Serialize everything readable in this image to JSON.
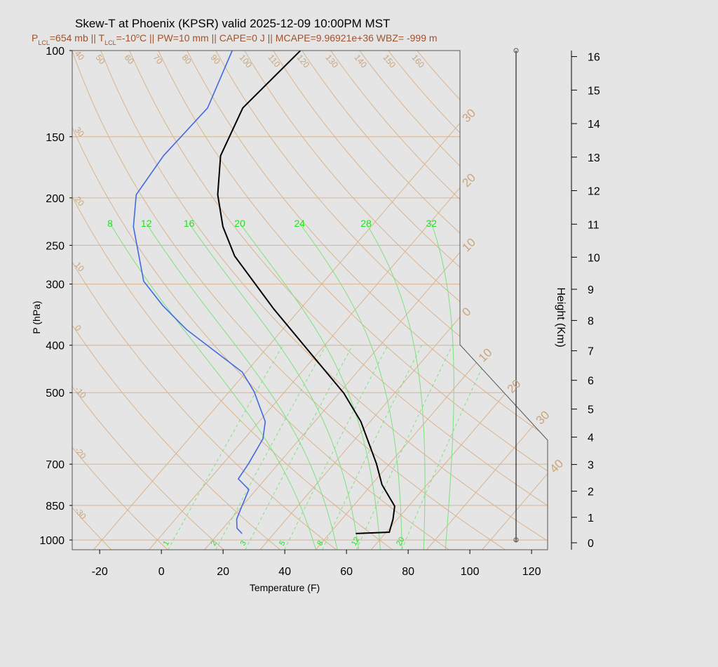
{
  "chart_data": {
    "type": "skewt",
    "title": "Skew-T at Phoenix (KPSR) valid 2025-12-09 10:00PM MST",
    "subtitle": [
      {
        "text": "P"
      },
      {
        "text": "LCL",
        "script": "sub"
      },
      {
        "text": "=654 mb || T"
      },
      {
        "text": "LCL",
        "script": "sub"
      },
      {
        "text": "=-10"
      },
      {
        "text": "o",
        "script": "super"
      },
      {
        "text": "C || PW=10 mm || CAPE=0 J || MCAPE=9.96921e+36 WBZ= -999 m"
      }
    ],
    "xlabel": "Temperature (F)",
    "ylabel": "P (hPa)",
    "y2label": "Height (Km)",
    "xlim": [
      -28.9,
      125.2
    ],
    "xticks": [
      -20,
      0,
      20,
      40,
      60,
      80,
      100,
      120
    ],
    "ylim": [
      1047,
      100
    ],
    "log_y": true,
    "yticks": [
      100,
      150,
      200,
      250,
      300,
      400,
      500,
      700,
      850,
      1000
    ],
    "y2ticks": [
      0,
      1,
      2,
      3,
      4,
      5,
      6,
      7,
      8,
      9,
      10,
      11,
      12,
      13,
      14,
      15,
      16
    ],
    "series": [
      {
        "color": "#000000",
        "pressure": [
          970,
          964,
          907,
          853,
          771,
          698,
          573,
          501,
          411,
          337,
          263,
          229,
          197,
          164,
          131,
          100
        ],
        "values": [
          58.5,
          69,
          66.6,
          63.5,
          53.4,
          45.7,
          29,
          15.5,
          -7.6,
          -30.7,
          -58,
          -70,
          -80.6,
          -90.5,
          -96.6,
          -93.9
        ]
      },
      {
        "color": "#4169e1",
        "pressure": [
          970,
          946,
          907,
          851,
          789,
          750,
          698,
          621,
          573,
          498,
          454,
          372,
          332,
          296,
          229,
          197,
          164,
          131,
          100
        ],
        "values": [
          21.6,
          18.5,
          15.9,
          13.9,
          11.6,
          5.2,
          4.3,
          2.0,
          -2.0,
          -13.9,
          -23.2,
          -53,
          -67.5,
          -80.5,
          -99,
          -107,
          -109,
          -108,
          -116
        ]
      }
    ],
    "isotherms_c": [
      {
        "value": -30,
        "label": "30"
      },
      {
        "value": -20,
        "label": "20"
      },
      {
        "value": -10,
        "label": "10"
      },
      {
        "value": 0,
        "label": "0"
      },
      {
        "value": 10,
        "label": "10"
      },
      {
        "value": 20,
        "label": "20"
      },
      {
        "value": 30,
        "label": "30"
      },
      {
        "value": 40,
        "label": "40"
      }
    ],
    "dry_adiabats_c": [
      -30,
      -20,
      -10,
      0,
      10,
      20,
      30,
      40,
      50,
      60,
      70,
      80,
      90,
      100,
      110,
      120,
      130,
      140,
      150,
      160
    ],
    "moist_adiabats_c": [
      8,
      12,
      16,
      20,
      24,
      28,
      32
    ],
    "mixing_ratios_gkg": [
      1,
      2,
      3,
      5,
      8,
      12,
      20
    ],
    "grid_color": "#d9b48f",
    "moist_color": "#7ee07e",
    "label_green": "#22e022",
    "label_tan": "#c9a47c"
  }
}
